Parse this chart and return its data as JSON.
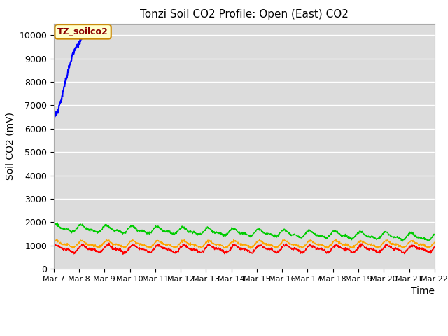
{
  "title": "Tonzi Soil CO2 Profile: Open (East) CO2",
  "ylabel": "Soil CO2 (mV)",
  "xlabel": "Time",
  "ylim": [
    0,
    10500
  ],
  "yticks": [
    0,
    1000,
    2000,
    3000,
    4000,
    5000,
    6000,
    7000,
    8000,
    9000,
    10000
  ],
  "xtick_labels": [
    "Mar 7",
    "Mar 8",
    "Mar 9",
    "Mar 10",
    "Mar 11",
    "Mar 12",
    "Mar 13",
    "Mar 14",
    "Mar 15",
    "Mar 16",
    "Mar 17",
    "Mar 18",
    "Mar 19",
    "Mar 20",
    "Mar 21",
    "Mar 22"
  ],
  "colors": {
    "2cm": "#ff0000",
    "4cm": "#ffa500",
    "8cm": "#00cc00",
    "16cm": "#0000ff"
  },
  "bg_color": "#dcdcdc",
  "legend_label": "TZ_soilco2",
  "legend_bg": "#ffffcc",
  "legend_border": "#cc8800",
  "title_fontsize": 11,
  "axis_fontsize": 10,
  "tick_fontsize": 9
}
